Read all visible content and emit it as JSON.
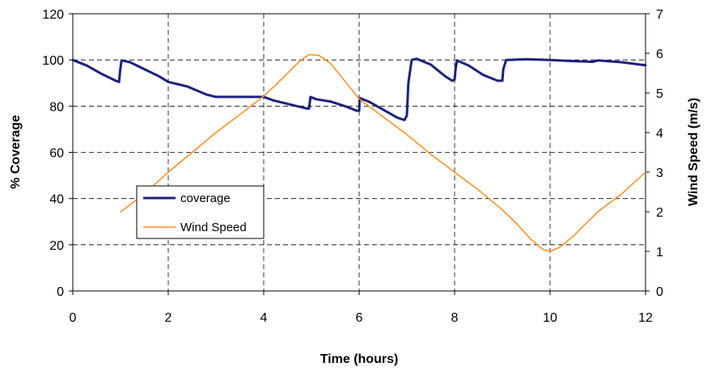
{
  "chart_data": {
    "type": "line",
    "xlabel": "Time (hours)",
    "ylabel_left": "% Coverage",
    "ylabel_right": "Wind Speed (m/s)",
    "xlim": [
      0,
      12
    ],
    "ylim_left": [
      0,
      120
    ],
    "ylim_right": [
      0,
      7
    ],
    "x_ticks": [
      "0",
      "2",
      "4",
      "6",
      "8",
      "10",
      "12"
    ],
    "y_left_ticks": [
      "0",
      "20",
      "40",
      "60",
      "80",
      "100",
      "120"
    ],
    "y_right_ticks": [
      "0",
      "1",
      "2",
      "3",
      "4",
      "5",
      "6",
      "7"
    ],
    "grid": true,
    "legend_position": "left",
    "series": [
      {
        "name": "coverage",
        "axis": "left",
        "color": "#1a237e",
        "points": [
          [
            0,
            100
          ],
          [
            0.3,
            97.5
          ],
          [
            0.6,
            94
          ],
          [
            0.9,
            91
          ],
          [
            0.97,
            90.5
          ],
          [
            0.99,
            95
          ],
          [
            1.02,
            99.8
          ],
          [
            1.2,
            99
          ],
          [
            1.5,
            96
          ],
          [
            1.8,
            93
          ],
          [
            2,
            90.5
          ],
          [
            2.4,
            88.5
          ],
          [
            2.8,
            85
          ],
          [
            3,
            84
          ],
          [
            3.5,
            84
          ],
          [
            4,
            84
          ],
          [
            4.2,
            82.5
          ],
          [
            4.6,
            80.5
          ],
          [
            4.9,
            79
          ],
          [
            4.95,
            79
          ],
          [
            4.98,
            84
          ],
          [
            5.1,
            83
          ],
          [
            5.4,
            82
          ],
          [
            5.7,
            80
          ],
          [
            5.95,
            78
          ],
          [
            6.0,
            78
          ],
          [
            6.01,
            83.5
          ],
          [
            6.2,
            82
          ],
          [
            6.5,
            78.5
          ],
          [
            6.8,
            75
          ],
          [
            6.95,
            74
          ],
          [
            7.0,
            76
          ],
          [
            7.03,
            90
          ],
          [
            7.1,
            100
          ],
          [
            7.2,
            100.5
          ],
          [
            7.5,
            98
          ],
          [
            7.8,
            93
          ],
          [
            7.95,
            91
          ],
          [
            8.0,
            91.5
          ],
          [
            8.02,
            96
          ],
          [
            8.05,
            99.8
          ],
          [
            8.3,
            97.5
          ],
          [
            8.6,
            93.5
          ],
          [
            8.9,
            91
          ],
          [
            9.0,
            91
          ],
          [
            9.02,
            96
          ],
          [
            9.08,
            100
          ],
          [
            9.5,
            100.3
          ],
          [
            10,
            100
          ],
          [
            10.5,
            99.5
          ],
          [
            10.9,
            99.2
          ],
          [
            11,
            99.8
          ],
          [
            11.5,
            99
          ],
          [
            12,
            97.7
          ]
        ]
      },
      {
        "name": "Wind Speed",
        "axis": "right",
        "color": "#ff8c1a",
        "points": [
          [
            1,
            2
          ],
          [
            1.5,
            2.45
          ],
          [
            2,
            3
          ],
          [
            2.5,
            3.5
          ],
          [
            3,
            4
          ],
          [
            3.5,
            4.45
          ],
          [
            4,
            4.92
          ],
          [
            4.25,
            5.2
          ],
          [
            4.5,
            5.5
          ],
          [
            4.75,
            5.8
          ],
          [
            4.95,
            5.97
          ],
          [
            5.15,
            5.95
          ],
          [
            5.4,
            5.75
          ],
          [
            5.7,
            5.3
          ],
          [
            6,
            4.85
          ],
          [
            6.5,
            4.4
          ],
          [
            7,
            3.95
          ],
          [
            7.5,
            3.45
          ],
          [
            8,
            3
          ],
          [
            8.5,
            2.55
          ],
          [
            9,
            2.05
          ],
          [
            9.3,
            1.7
          ],
          [
            9.6,
            1.3
          ],
          [
            9.85,
            1.05
          ],
          [
            10,
            1
          ],
          [
            10.2,
            1.1
          ],
          [
            10.5,
            1.4
          ],
          [
            11,
            2
          ],
          [
            11.5,
            2.45
          ],
          [
            12,
            3
          ]
        ]
      }
    ]
  }
}
